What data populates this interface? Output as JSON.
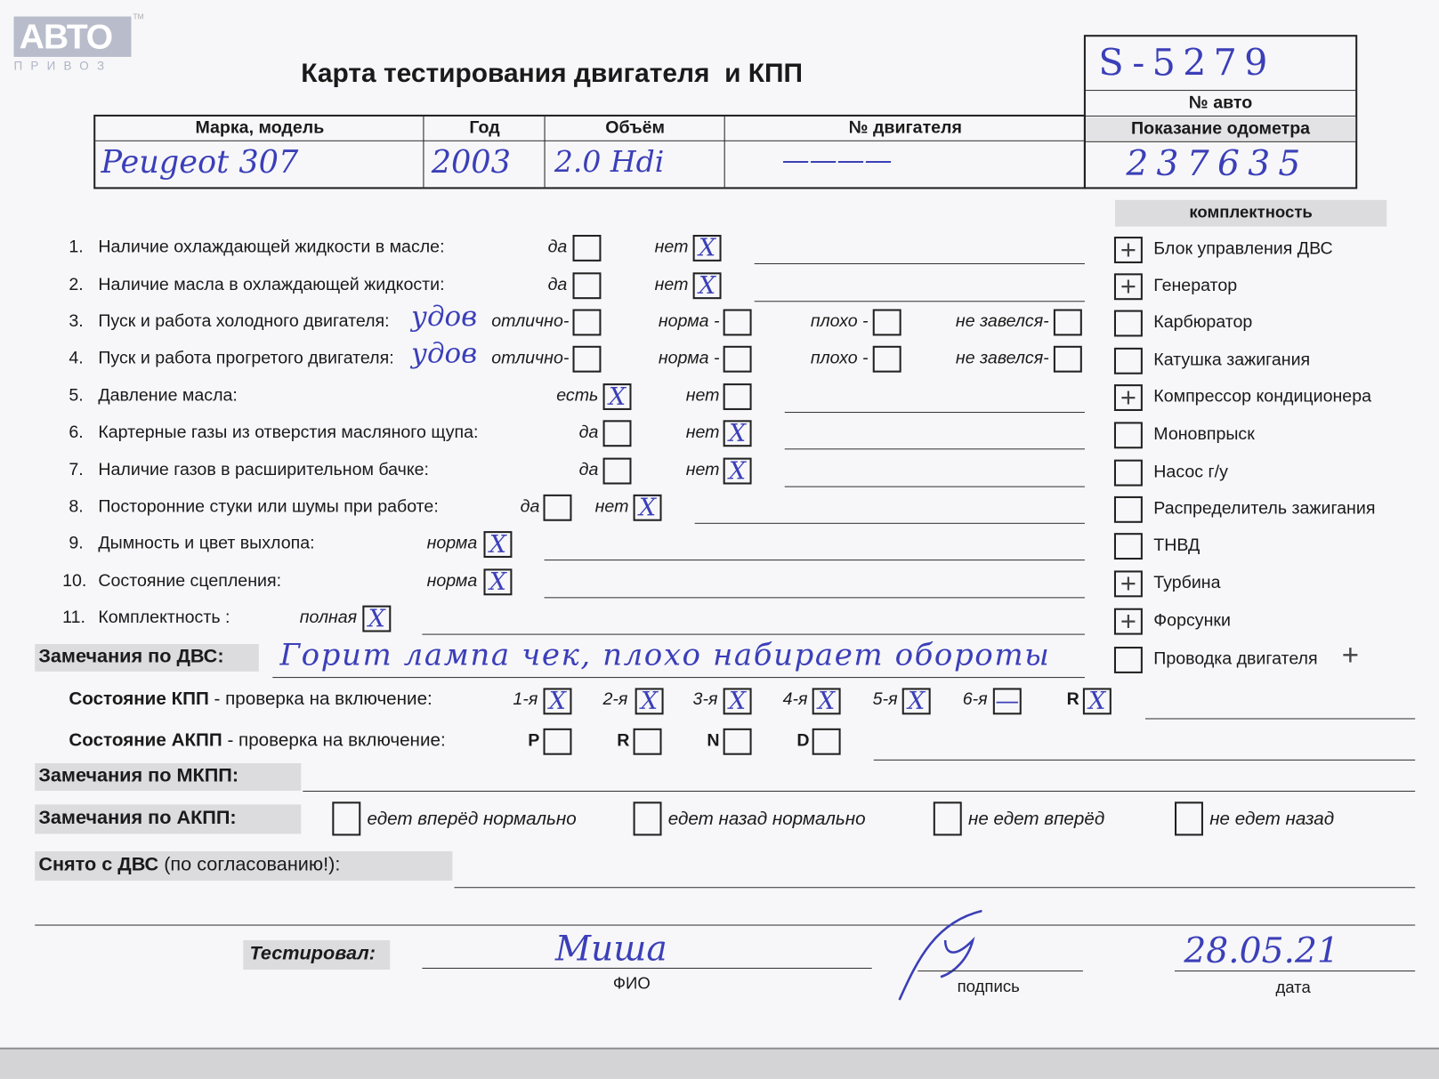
{
  "logo": {
    "text": "АВТО",
    "sub": "ПРИВОЗ",
    "tm": "TM"
  },
  "title": "Карта тестирования двигателя  и КПП",
  "vehicle_id": {
    "value": "S-5279",
    "label": "№ авто"
  },
  "odometer": {
    "label": "Показание одометра",
    "value": "237635"
  },
  "header_table": {
    "columns": [
      "Марка, модель",
      "Год",
      "Объём",
      "№ двигателя"
    ],
    "values": [
      "Peugeot 307",
      "2003",
      "2.0 Hdi",
      "————"
    ]
  },
  "checklist": [
    {
      "num": "1.",
      "label": "Наличие охлаждающей жидкости в масле:",
      "note": "",
      "options": [
        {
          "label": "да",
          "mark": ""
        },
        {
          "label": "нет",
          "mark": "X"
        }
      ]
    },
    {
      "num": "2.",
      "label": "Наличие масла в охлаждающей жидкости:",
      "note": "",
      "options": [
        {
          "label": "да",
          "mark": ""
        },
        {
          "label": "нет",
          "mark": "X"
        }
      ]
    },
    {
      "num": "3.",
      "label": "Пуск и работа холодного двигателя:",
      "note": "удов",
      "options": [
        {
          "label": "отлично-",
          "mark": ""
        },
        {
          "label": "норма -",
          "mark": ""
        },
        {
          "label": "плохо -",
          "mark": ""
        },
        {
          "label": "не завелся-",
          "mark": ""
        }
      ]
    },
    {
      "num": "4.",
      "label": "Пуск и работа прогретого двигателя:",
      "note": "удов",
      "options": [
        {
          "label": "отлично-",
          "mark": ""
        },
        {
          "label": "норма -",
          "mark": ""
        },
        {
          "label": "плохо -",
          "mark": ""
        },
        {
          "label": "не завелся-",
          "mark": ""
        }
      ]
    },
    {
      "num": "5.",
      "label": "Давление масла:",
      "note": "",
      "options": [
        {
          "label": "есть",
          "mark": "X"
        },
        {
          "label": "нет",
          "mark": ""
        }
      ]
    },
    {
      "num": "6.",
      "label": "Картерные газы из отверстия масляного щупа:",
      "note": "",
      "options": [
        {
          "label": "да",
          "mark": ""
        },
        {
          "label": "нет",
          "mark": "X"
        }
      ]
    },
    {
      "num": "7.",
      "label": "Наличие газов в расширительном бачке:",
      "note": "",
      "options": [
        {
          "label": "да",
          "mark": ""
        },
        {
          "label": "нет",
          "mark": "X"
        }
      ]
    },
    {
      "num": "8.",
      "label": "Посторонние стуки или шумы при работе:",
      "note": "",
      "options": [
        {
          "label": "да",
          "mark": ""
        },
        {
          "label": "нет",
          "mark": "X"
        }
      ]
    },
    {
      "num": "9.",
      "label": "Дымность и цвет выхлопа:",
      "note": "",
      "options": [
        {
          "label": "норма",
          "mark": "X"
        }
      ]
    },
    {
      "num": "10.",
      "label": "Состояние сцепления:",
      "note": "",
      "options": [
        {
          "label": "норма",
          "mark": "X"
        }
      ]
    },
    {
      "num": "11.",
      "label": "Комплектность :",
      "note": "",
      "options": [
        {
          "label": "полная",
          "mark": "X"
        }
      ]
    }
  ],
  "completeness": {
    "title": "комплектность",
    "items": [
      {
        "label": "Блок управления ДВС",
        "mark": "+"
      },
      {
        "label": "Генератор",
        "mark": "+"
      },
      {
        "label": "Карбюратор",
        "mark": ""
      },
      {
        "label": "Катушка зажигания",
        "mark": ""
      },
      {
        "label": "Компрессор кондиционера",
        "mark": "+"
      },
      {
        "label": "Моновпрыск",
        "mark": ""
      },
      {
        "label": "Насос г/у",
        "mark": ""
      },
      {
        "label": "Распределитель зажигания",
        "mark": ""
      },
      {
        "label": "ТНВД",
        "mark": ""
      },
      {
        "label": "Турбина",
        "mark": "+"
      },
      {
        "label": "Форсунки",
        "mark": "+"
      },
      {
        "label": "Проводка двигателя",
        "mark": "",
        "extra_mark": "+"
      }
    ]
  },
  "engine_remarks": {
    "label": "Замечания по ДВС:",
    "value": "Горит лампа чек, плохо набирает обороты"
  },
  "manual_gearbox": {
    "label_bold": "Состояние КПП",
    "label_rest": " - проверка на включение:",
    "gears": [
      {
        "label": "1-я",
        "mark": "X"
      },
      {
        "label": "2-я",
        "mark": "X"
      },
      {
        "label": "3-я",
        "mark": "X"
      },
      {
        "label": "4-я",
        "mark": "X"
      },
      {
        "label": "5-я",
        "mark": "X"
      },
      {
        "label": "6-я",
        "mark": "—"
      },
      {
        "label": "R",
        "mark": "X"
      }
    ]
  },
  "auto_gearbox": {
    "label_bold": "Состояние АКПП",
    "label_rest": " - проверка на включение:",
    "gears": [
      {
        "label": "P",
        "mark": ""
      },
      {
        "label": "R",
        "mark": ""
      },
      {
        "label": "N",
        "mark": ""
      },
      {
        "label": "D",
        "mark": ""
      }
    ]
  },
  "mkpp_remarks": {
    "label": "Замечания по МКПП:"
  },
  "akpp_remarks": {
    "label": "Замечания по АКПП:",
    "options": [
      {
        "label": "едет вперёд нормально",
        "mark": ""
      },
      {
        "label": "едет назад нормально",
        "mark": ""
      },
      {
        "label": "не едет вперёд",
        "mark": ""
      },
      {
        "label": "не едет назад",
        "mark": ""
      }
    ]
  },
  "removed": {
    "label_bold": "Снято с ДВС",
    "label_rest": " (по согласованию!):"
  },
  "signoff": {
    "label": "Тестировал:",
    "name": "Миша",
    "name_caption": "ФИО",
    "signature_caption": "подпись",
    "date": "28.05.21",
    "date_caption": "дата"
  },
  "colors": {
    "ink": "#3b3fb8",
    "print": "#1a1a1a",
    "band": "#dcdcdf"
  }
}
